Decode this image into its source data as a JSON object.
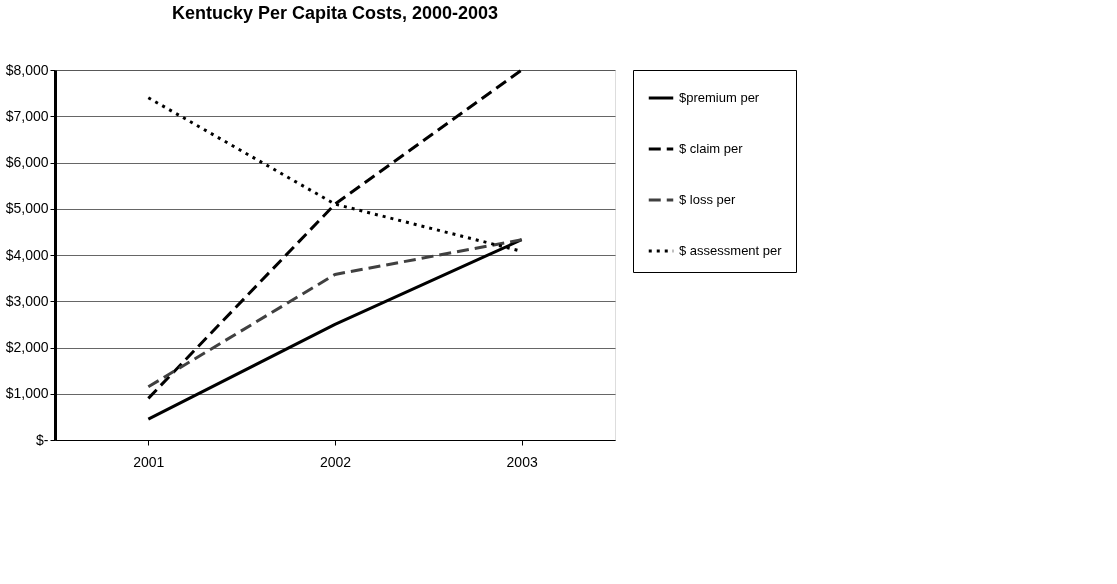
{
  "chart_data": {
    "type": "line",
    "title": "Kentucky Per Capita Costs, 2000-2003",
    "categories": [
      "2001",
      "2002",
      "2003"
    ],
    "series": [
      {
        "name": "$premium per",
        "color": "#000000",
        "line_style": "solid",
        "values": [
          450,
          2500,
          4330
        ]
      },
      {
        "name": "$ claim per",
        "color": "#000000",
        "line_style": "dashed",
        "values": [
          900,
          5100,
          8000
        ]
      },
      {
        "name": "$ loss per",
        "color": "#404040",
        "line_style": "dashed",
        "values": [
          1150,
          3580,
          4330
        ]
      },
      {
        "name": "$ assessment per",
        "color": "#000000",
        "line_style": "dotted",
        "values": [
          7400,
          5100,
          4080
        ]
      }
    ],
    "ylim": [
      0,
      8000
    ],
    "yticks": [
      {
        "value": 0,
        "label": "$-"
      },
      {
        "value": 1000,
        "label": "$1,000"
      },
      {
        "value": 2000,
        "label": "$2,000"
      },
      {
        "value": 3000,
        "label": "$3,000"
      },
      {
        "value": 4000,
        "label": "$4,000"
      },
      {
        "value": 5000,
        "label": "$5,000"
      },
      {
        "value": 6000,
        "label": "$6,000"
      },
      {
        "value": 7000,
        "label": "$7,000"
      },
      {
        "value": 8000,
        "label": "$8,000"
      }
    ],
    "grid": "y",
    "legend": "right",
    "marker": "none"
  }
}
